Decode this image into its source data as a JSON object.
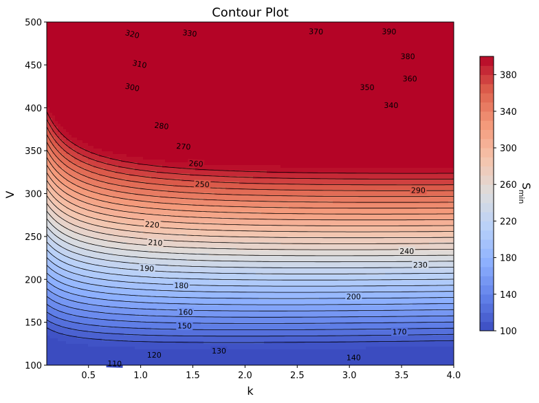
{
  "chart_data": {
    "type": "contour",
    "title": "Contour Plot",
    "xlabel": "k",
    "ylabel": "V",
    "colorbar_label_main": "S",
    "colorbar_label_sub": "min",
    "colormap": "coolwarm",
    "xlim": [
      0.1,
      4.0
    ],
    "ylim": [
      100,
      500
    ],
    "x_ticks": [
      0.5,
      1.0,
      1.5,
      2.0,
      2.5,
      3.0,
      3.5,
      4.0
    ],
    "x_tick_labels": [
      "0.5",
      "1.0",
      "1.5",
      "2.0",
      "2.5",
      "3.0",
      "3.5",
      "4.0"
    ],
    "y_ticks": [
      100,
      150,
      200,
      250,
      300,
      350,
      400,
      450,
      500
    ],
    "y_tick_labels": [
      "100",
      "150",
      "200",
      "250",
      "300",
      "350",
      "400",
      "450",
      "500"
    ],
    "colorbar_range": [
      100,
      400
    ],
    "colorbar_ticks": [
      100,
      140,
      180,
      220,
      260,
      300,
      340,
      380
    ],
    "colorbar_tick_labels": [
      "100",
      "140",
      "180",
      "220",
      "260",
      "300",
      "340",
      "380"
    ],
    "contour_levels": [
      110,
      120,
      130,
      140,
      150,
      160,
      170,
      180,
      190,
      200,
      210,
      220,
      230,
      240,
      250,
      260,
      270,
      280,
      290,
      300,
      310,
      320,
      330,
      340,
      350,
      360,
      370,
      380,
      390
    ],
    "contour_labels": [
      {
        "value": 110,
        "text": "110",
        "k": 0.75,
        "V": 102
      },
      {
        "value": 120,
        "text": "120",
        "k": 1.13,
        "V": 112
      },
      {
        "value": 130,
        "text": "130",
        "k": 1.75,
        "V": 117
      },
      {
        "value": 140,
        "text": "140",
        "k": 3.04,
        "V": 109
      },
      {
        "value": 150,
        "text": "150",
        "k": 1.42,
        "V": 146
      },
      {
        "value": 160,
        "text": "160",
        "k": 1.43,
        "V": 162
      },
      {
        "value": 170,
        "text": "170",
        "k": 3.48,
        "V": 139
      },
      {
        "value": 180,
        "text": "180",
        "k": 1.39,
        "V": 193
      },
      {
        "value": 190,
        "text": "190",
        "k": 1.06,
        "V": 213
      },
      {
        "value": 200,
        "text": "200",
        "k": 3.04,
        "V": 180
      },
      {
        "value": 210,
        "text": "210",
        "k": 1.14,
        "V": 243
      },
      {
        "value": 220,
        "text": "220",
        "k": 1.11,
        "V": 264
      },
      {
        "value": 230,
        "text": "230",
        "k": 3.68,
        "V": 217
      },
      {
        "value": 240,
        "text": "240",
        "k": 3.55,
        "V": 233
      },
      {
        "value": 250,
        "text": "250",
        "k": 1.59,
        "V": 311
      },
      {
        "value": 260,
        "text": "260",
        "k": 1.53,
        "V": 335
      },
      {
        "value": 270,
        "text": "270",
        "k": 1.41,
        "V": 355
      },
      {
        "value": 280,
        "text": "280",
        "k": 1.2,
        "V": 379
      },
      {
        "value": 290,
        "text": "290",
        "k": 3.66,
        "V": 304
      },
      {
        "value": 300,
        "text": "300",
        "k": 0.92,
        "V": 424
      },
      {
        "value": 310,
        "text": "310",
        "k": 0.99,
        "V": 451
      },
      {
        "value": 320,
        "text": "320",
        "k": 0.92,
        "V": 486
      },
      {
        "value": 330,
        "text": "330",
        "k": 1.47,
        "V": 487
      },
      {
        "value": 340,
        "text": "340",
        "k": 3.4,
        "V": 403
      },
      {
        "value": 350,
        "text": "350",
        "k": 3.17,
        "V": 424
      },
      {
        "value": 360,
        "text": "360",
        "k": 3.58,
        "V": 434
      },
      {
        "value": 370,
        "text": "370",
        "k": 2.68,
        "V": 489
      },
      {
        "value": 380,
        "text": "380",
        "k": 3.56,
        "V": 460
      },
      {
        "value": 390,
        "text": "390",
        "k": 3.38,
        "V": 489
      }
    ],
    "grid": false,
    "legend": "none",
    "colorbar_position": "right"
  }
}
